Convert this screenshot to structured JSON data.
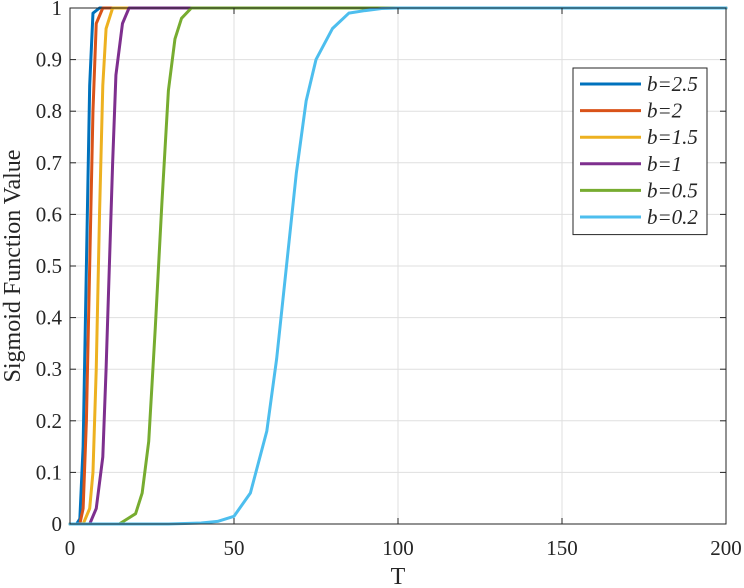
{
  "chart_data": {
    "type": "line",
    "title": "",
    "xlabel": "T",
    "ylabel": "Sigmoid Function Value",
    "xlim": [
      0,
      200
    ],
    "ylim": [
      0,
      1
    ],
    "xticks": [
      0,
      50,
      100,
      150,
      200
    ],
    "xtick_labels": [
      "0",
      "50",
      "100",
      "150",
      "200"
    ],
    "yticks": [
      0,
      0.1,
      0.2,
      0.3,
      0.4,
      0.5,
      0.6,
      0.7,
      0.8,
      0.9,
      1
    ],
    "ytick_labels": [
      "0",
      "0.1",
      "0.2",
      "0.3",
      "0.4",
      "0.5",
      "0.6",
      "0.7",
      "0.8",
      "0.9",
      "1"
    ],
    "grid": true,
    "legend_position": "top-right",
    "series": [
      {
        "name": "b=2.5",
        "color": "#0072BD",
        "x": [
          0,
          2,
          3,
          4,
          5,
          6,
          7,
          9,
          200
        ],
        "y": [
          0.0,
          0.0,
          0.01,
          0.15,
          0.5,
          0.85,
          0.99,
          1.0,
          1.0
        ]
      },
      {
        "name": "b=2",
        "color": "#D95319",
        "x": [
          0,
          3,
          4,
          5,
          6,
          7,
          8,
          10,
          200
        ],
        "y": [
          0.0,
          0.0,
          0.03,
          0.2,
          0.5,
          0.8,
          0.97,
          1.0,
          1.0
        ]
      },
      {
        "name": "b=1.5",
        "color": "#EDB120",
        "x": [
          0,
          4,
          6,
          7,
          8,
          9,
          10,
          11,
          13,
          200
        ],
        "y": [
          0.0,
          0.0,
          0.03,
          0.1,
          0.3,
          0.6,
          0.85,
          0.96,
          1.0,
          1.0
        ]
      },
      {
        "name": "b=1",
        "color": "#7E2F8E",
        "x": [
          0,
          6,
          8,
          10,
          11,
          12,
          13,
          14,
          16,
          18,
          200
        ],
        "y": [
          0.0,
          0.0,
          0.03,
          0.13,
          0.3,
          0.5,
          0.7,
          0.87,
          0.97,
          1.0,
          1.0
        ]
      },
      {
        "name": "b=0.5",
        "color": "#77AC30",
        "x": [
          0,
          15,
          20,
          22,
          24,
          26,
          28,
          30,
          32,
          34,
          37,
          45,
          200
        ],
        "y": [
          0.0,
          0.0,
          0.02,
          0.06,
          0.16,
          0.38,
          0.62,
          0.84,
          0.94,
          0.98,
          1.0,
          1.0,
          1.0
        ]
      },
      {
        "name": "b=0.2",
        "color": "#4DBEEE",
        "x": [
          0,
          30,
          40,
          45,
          50,
          55,
          60,
          63,
          66,
          69,
          72,
          75,
          80,
          85,
          90,
          95,
          100,
          110,
          200
        ],
        "y": [
          0.0,
          0.0,
          0.002,
          0.005,
          0.015,
          0.06,
          0.18,
          0.32,
          0.5,
          0.68,
          0.82,
          0.9,
          0.96,
          0.99,
          0.995,
          0.999,
          1.0,
          1.0,
          1.0
        ]
      }
    ]
  }
}
